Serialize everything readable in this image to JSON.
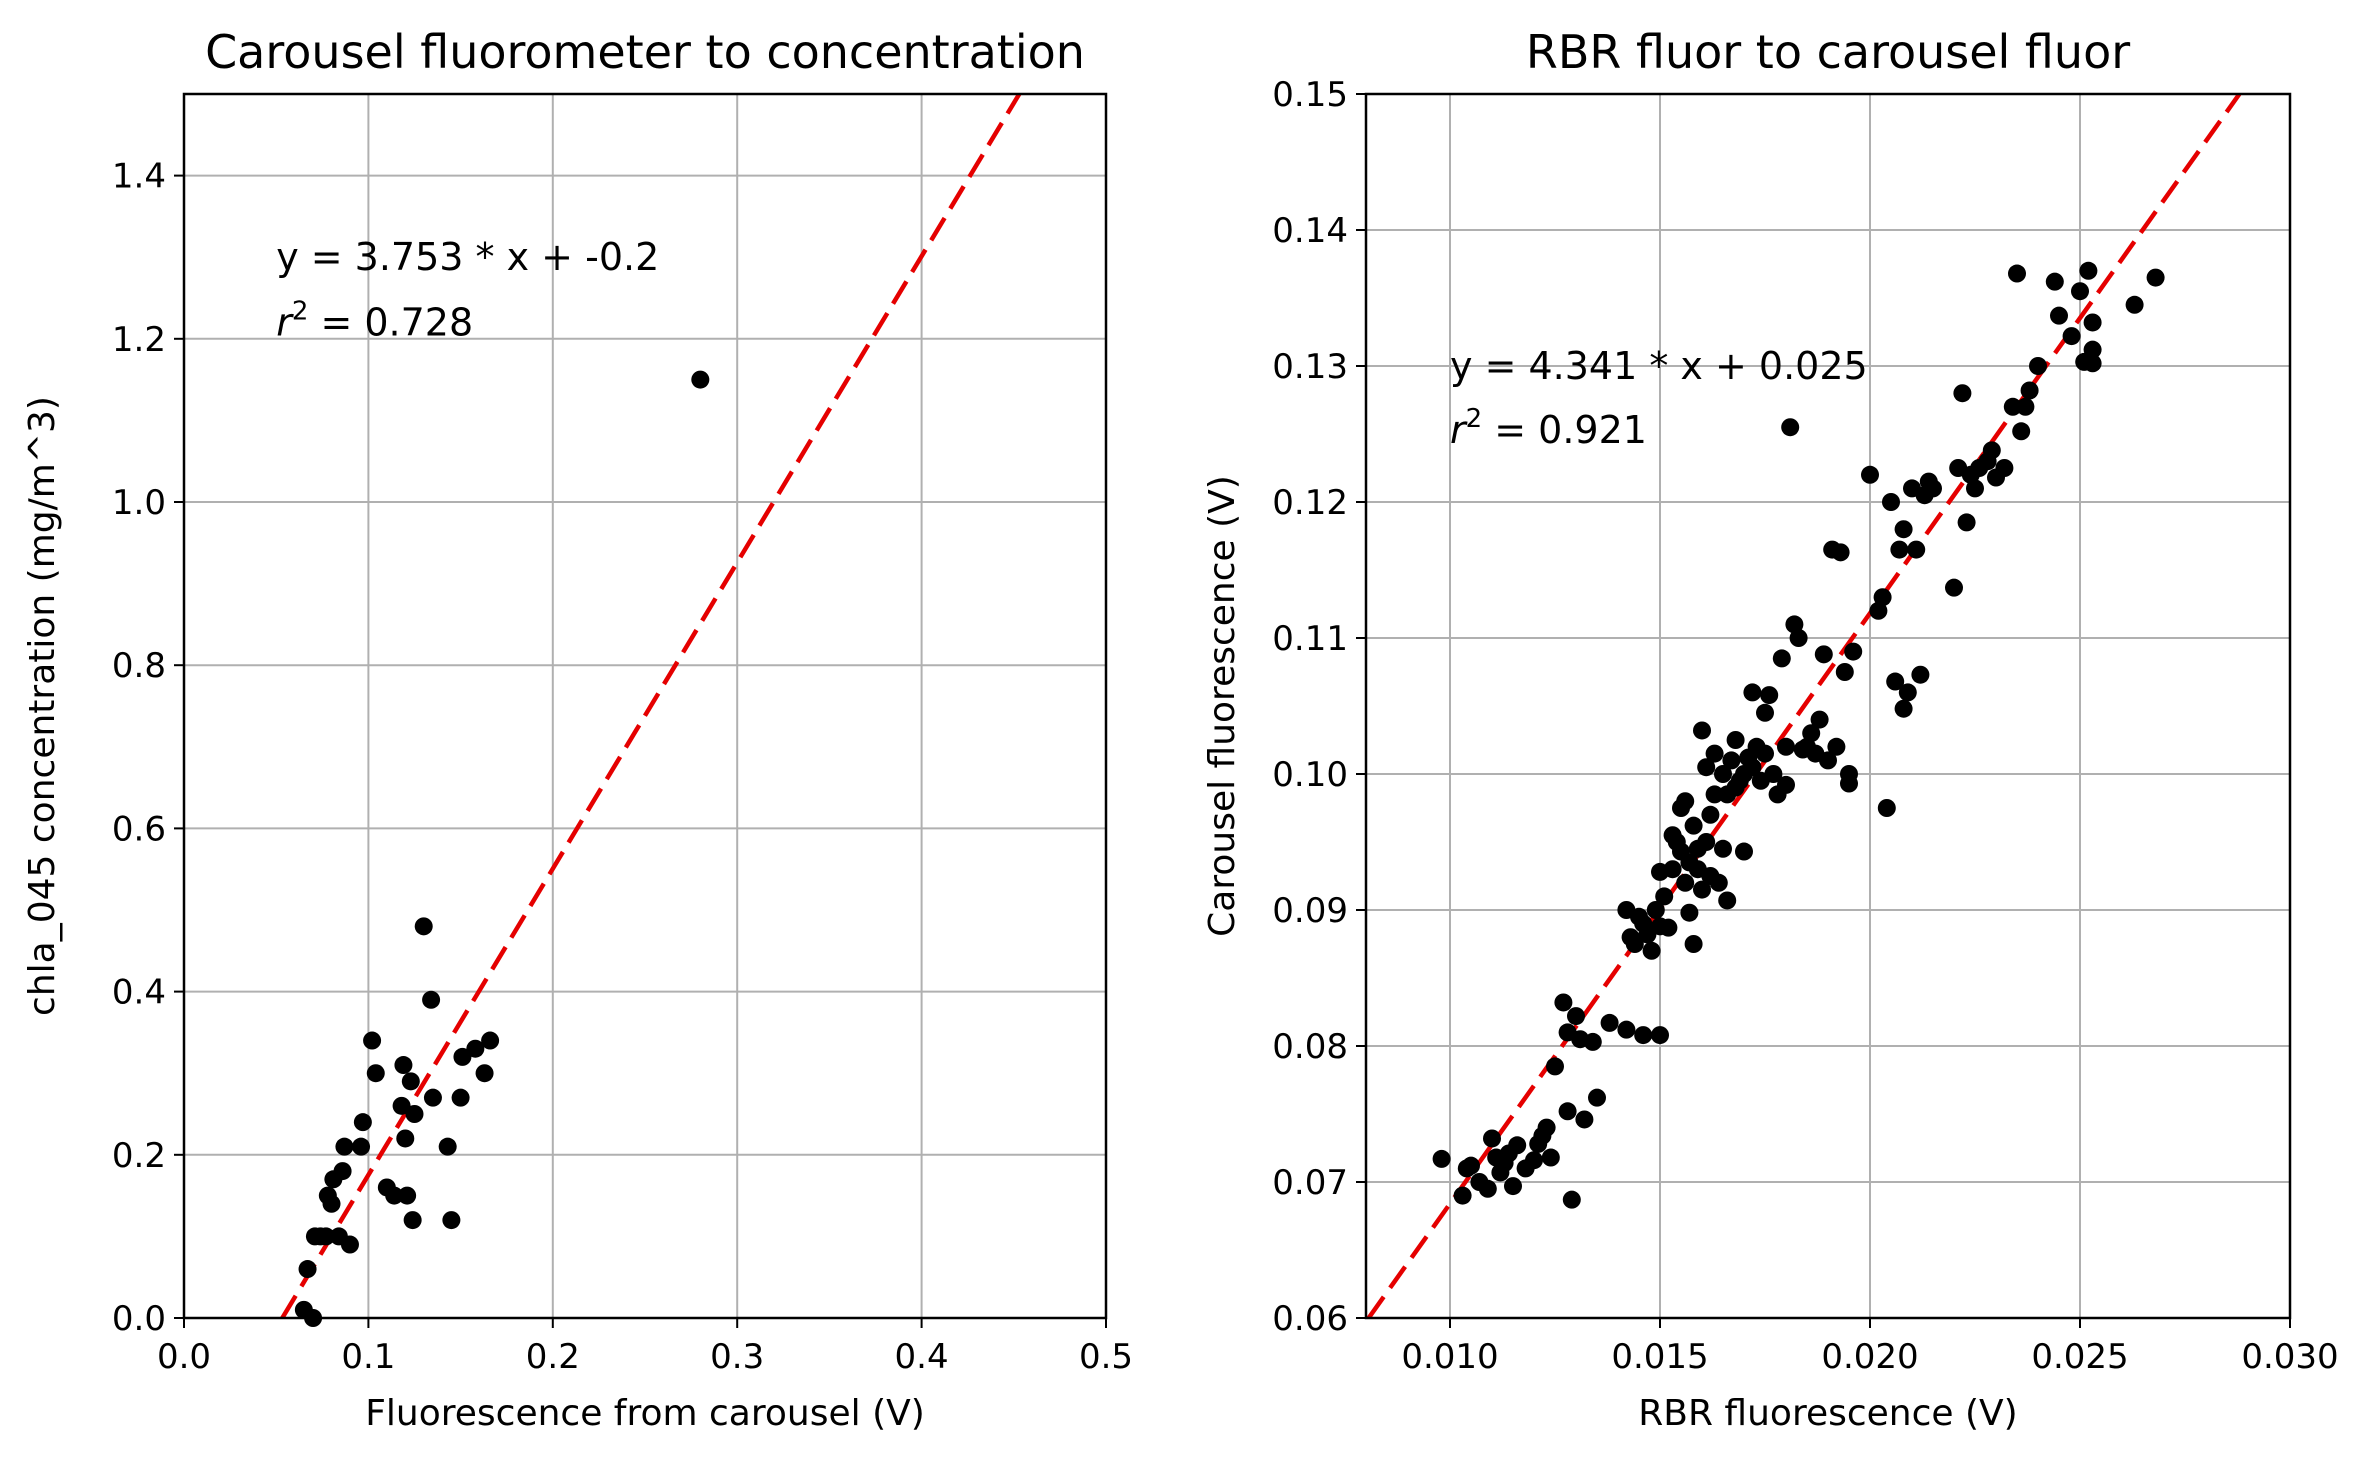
{
  "chart_data": [
    {
      "type": "scatter",
      "title": "Carousel fluorometer to concentration",
      "xlabel": "Fluorescence from carousel (V)",
      "ylabel": "chla_045 concentration (mg/m^3)",
      "xlim": [
        0.0,
        0.5
      ],
      "ylim": [
        0.0,
        1.5
      ],
      "xticks": [
        "0.0",
        "0.1",
        "0.2",
        "0.3",
        "0.4",
        "0.5"
      ],
      "yticks": [
        "0.0",
        "0.2",
        "0.4",
        "0.6",
        "0.8",
        "1.0",
        "1.2",
        "1.4"
      ],
      "grid": true,
      "annotation": {
        "equation": "y = 3.753 * x + -0.2",
        "r2_prefix": "r",
        "r2_exp": "2",
        "r2_value": " = 0.728"
      },
      "fit": {
        "slope": 3.753,
        "intercept": -0.2,
        "color": "#e50000",
        "style": "dashed"
      },
      "marker_color": "#000000",
      "series": [
        {
          "values": [
            [
              0.065,
              0.01
            ],
            [
              0.067,
              0.06
            ],
            [
              0.07,
              0.0
            ],
            [
              0.071,
              0.1
            ],
            [
              0.074,
              0.1
            ],
            [
              0.077,
              0.1
            ],
            [
              0.078,
              0.15
            ],
            [
              0.08,
              0.14
            ],
            [
              0.081,
              0.17
            ],
            [
              0.084,
              0.1
            ],
            [
              0.086,
              0.18
            ],
            [
              0.087,
              0.21
            ],
            [
              0.09,
              0.09
            ],
            [
              0.096,
              0.21
            ],
            [
              0.097,
              0.24
            ],
            [
              0.102,
              0.34
            ],
            [
              0.104,
              0.3
            ],
            [
              0.11,
              0.16
            ],
            [
              0.114,
              0.15
            ],
            [
              0.118,
              0.26
            ],
            [
              0.119,
              0.31
            ],
            [
              0.12,
              0.22
            ],
            [
              0.121,
              0.15
            ],
            [
              0.123,
              0.29
            ],
            [
              0.124,
              0.12
            ],
            [
              0.125,
              0.25
            ],
            [
              0.13,
              0.48
            ],
            [
              0.134,
              0.39
            ],
            [
              0.135,
              0.27
            ],
            [
              0.143,
              0.21
            ],
            [
              0.145,
              0.12
            ],
            [
              0.15,
              0.27
            ],
            [
              0.151,
              0.32
            ],
            [
              0.158,
              0.33
            ],
            [
              0.163,
              0.3
            ],
            [
              0.166,
              0.34
            ],
            [
              0.28,
              1.15
            ]
          ]
        }
      ]
    },
    {
      "type": "scatter",
      "title": "RBR fluor to carousel fluor",
      "xlabel": "RBR fluorescence (V)",
      "ylabel": "Carousel fluorescence (V)",
      "xlim": [
        0.008,
        0.03
      ],
      "ylim": [
        0.06,
        0.15
      ],
      "xticks": [
        "0.010",
        "0.015",
        "0.020",
        "0.025",
        "0.030"
      ],
      "yticks": [
        "0.06",
        "0.07",
        "0.08",
        "0.09",
        "0.10",
        "0.11",
        "0.12",
        "0.13",
        "0.14",
        "0.15"
      ],
      "grid": true,
      "annotation": {
        "equation": "y = 4.341 * x + 0.025",
        "r2_prefix": "r",
        "r2_exp": "2",
        "r2_value": " = 0.921"
      },
      "fit": {
        "slope": 4.341,
        "intercept": 0.025,
        "color": "#e50000",
        "style": "dashed"
      },
      "marker_color": "#000000",
      "series": [
        {
          "values": [
            [
              0.0098,
              0.0717
            ],
            [
              0.0103,
              0.069
            ],
            [
              0.0104,
              0.071
            ],
            [
              0.0105,
              0.0712
            ],
            [
              0.0107,
              0.07
            ],
            [
              0.0109,
              0.0695
            ],
            [
              0.011,
              0.0732
            ],
            [
              0.0111,
              0.0718
            ],
            [
              0.0112,
              0.0707
            ],
            [
              0.0113,
              0.0714
            ],
            [
              0.0114,
              0.0721
            ],
            [
              0.0115,
              0.0697
            ],
            [
              0.0116,
              0.0727
            ],
            [
              0.0118,
              0.071
            ],
            [
              0.012,
              0.0716
            ],
            [
              0.0121,
              0.0728
            ],
            [
              0.0122,
              0.0734
            ],
            [
              0.0123,
              0.074
            ],
            [
              0.0124,
              0.0718
            ],
            [
              0.0125,
              0.0785
            ],
            [
              0.0127,
              0.0832
            ],
            [
              0.0128,
              0.081
            ],
            [
              0.0128,
              0.0752
            ],
            [
              0.0129,
              0.0687
            ],
            [
              0.013,
              0.0822
            ],
            [
              0.0131,
              0.0805
            ],
            [
              0.0132,
              0.0746
            ],
            [
              0.0134,
              0.0803
            ],
            [
              0.0135,
              0.0762
            ],
            [
              0.0138,
              0.0817
            ],
            [
              0.0142,
              0.0812
            ],
            [
              0.0146,
              0.0808
            ],
            [
              0.015,
              0.0808
            ],
            [
              0.0142,
              0.09
            ],
            [
              0.0143,
              0.088
            ],
            [
              0.0144,
              0.0875
            ],
            [
              0.0145,
              0.0895
            ],
            [
              0.0146,
              0.089
            ],
            [
              0.0147,
              0.0882
            ],
            [
              0.0148,
              0.087
            ],
            [
              0.0149,
              0.09
            ],
            [
              0.015,
              0.0928
            ],
            [
              0.015,
              0.0888
            ],
            [
              0.0151,
              0.091
            ],
            [
              0.0152,
              0.0887
            ],
            [
              0.0153,
              0.093
            ],
            [
              0.0153,
              0.0955
            ],
            [
              0.0154,
              0.095
            ],
            [
              0.0155,
              0.0943
            ],
            [
              0.0155,
              0.0975
            ],
            [
              0.0156,
              0.098
            ],
            [
              0.0156,
              0.092
            ],
            [
              0.0157,
              0.0898
            ],
            [
              0.0157,
              0.0935
            ],
            [
              0.0158,
              0.0962
            ],
            [
              0.0158,
              0.0875
            ],
            [
              0.0159,
              0.0945
            ],
            [
              0.0159,
              0.093
            ],
            [
              0.016,
              0.0915
            ],
            [
              0.016,
              0.1032
            ],
            [
              0.0161,
              0.095
            ],
            [
              0.0161,
              0.1005
            ],
            [
              0.0162,
              0.0925
            ],
            [
              0.0162,
              0.097
            ],
            [
              0.0163,
              0.0985
            ],
            [
              0.0163,
              0.1015
            ],
            [
              0.0164,
              0.092
            ],
            [
              0.0165,
              0.1
            ],
            [
              0.0165,
              0.0945
            ],
            [
              0.0166,
              0.0985
            ],
            [
              0.0166,
              0.0907
            ],
            [
              0.0167,
              0.101
            ],
            [
              0.0168,
              0.099
            ],
            [
              0.0168,
              0.1025
            ],
            [
              0.0169,
              0.0995
            ],
            [
              0.017,
              0.1
            ],
            [
              0.017,
              0.0943
            ],
            [
              0.0171,
              0.1012
            ],
            [
              0.0172,
              0.106
            ],
            [
              0.0172,
              0.1005
            ],
            [
              0.0173,
              0.102
            ],
            [
              0.0174,
              0.0995
            ],
            [
              0.0175,
              0.1015
            ],
            [
              0.0175,
              0.1045
            ],
            [
              0.0176,
              0.1058
            ],
            [
              0.0177,
              0.1
            ],
            [
              0.0178,
              0.0985
            ],
            [
              0.0179,
              0.1085
            ],
            [
              0.018,
              0.102
            ],
            [
              0.018,
              0.0992
            ],
            [
              0.0181,
              0.1255
            ],
            [
              0.0182,
              0.111
            ],
            [
              0.0183,
              0.11
            ],
            [
              0.0184,
              0.1018
            ],
            [
              0.0185,
              0.102
            ],
            [
              0.0186,
              0.103
            ],
            [
              0.0187,
              0.1015
            ],
            [
              0.0188,
              0.104
            ],
            [
              0.0189,
              0.1088
            ],
            [
              0.019,
              0.101
            ],
            [
              0.0191,
              0.1165
            ],
            [
              0.0192,
              0.102
            ],
            [
              0.0193,
              0.1163
            ],
            [
              0.0194,
              0.1075
            ],
            [
              0.0195,
              0.0993
            ],
            [
              0.0195,
              0.1
            ],
            [
              0.0196,
              0.109
            ],
            [
              0.02,
              0.122
            ],
            [
              0.0202,
              0.112
            ],
            [
              0.0203,
              0.113
            ],
            [
              0.0204,
              0.0975
            ],
            [
              0.0205,
              0.12
            ],
            [
              0.0206,
              0.1068
            ],
            [
              0.0207,
              0.1165
            ],
            [
              0.0208,
              0.118
            ],
            [
              0.0208,
              0.1048
            ],
            [
              0.0209,
              0.106
            ],
            [
              0.021,
              0.121
            ],
            [
              0.0211,
              0.1165
            ],
            [
              0.0212,
              0.1073
            ],
            [
              0.0213,
              0.1205
            ],
            [
              0.0214,
              0.1215
            ],
            [
              0.0215,
              0.121
            ],
            [
              0.022,
              0.1137
            ],
            [
              0.0221,
              0.1225
            ],
            [
              0.0222,
              0.128
            ],
            [
              0.0223,
              0.1185
            ],
            [
              0.0224,
              0.122
            ],
            [
              0.0225,
              0.121
            ],
            [
              0.0226,
              0.1225
            ],
            [
              0.0228,
              0.123
            ],
            [
              0.0229,
              0.1238
            ],
            [
              0.023,
              0.1218
            ],
            [
              0.0232,
              0.1225
            ],
            [
              0.0234,
              0.127
            ],
            [
              0.0235,
              0.1368
            ],
            [
              0.0236,
              0.1252
            ],
            [
              0.0237,
              0.127
            ],
            [
              0.0238,
              0.1282
            ],
            [
              0.024,
              0.13
            ],
            [
              0.0244,
              0.1362
            ],
            [
              0.0245,
              0.1337
            ],
            [
              0.0248,
              0.1322
            ],
            [
              0.025,
              0.1355
            ],
            [
              0.0251,
              0.1303
            ],
            [
              0.0252,
              0.137
            ],
            [
              0.0253,
              0.1332
            ],
            [
              0.0253,
              0.1312
            ],
            [
              0.0253,
              0.1302
            ],
            [
              0.0263,
              0.1345
            ],
            [
              0.0268,
              0.1365
            ]
          ]
        }
      ]
    }
  ]
}
